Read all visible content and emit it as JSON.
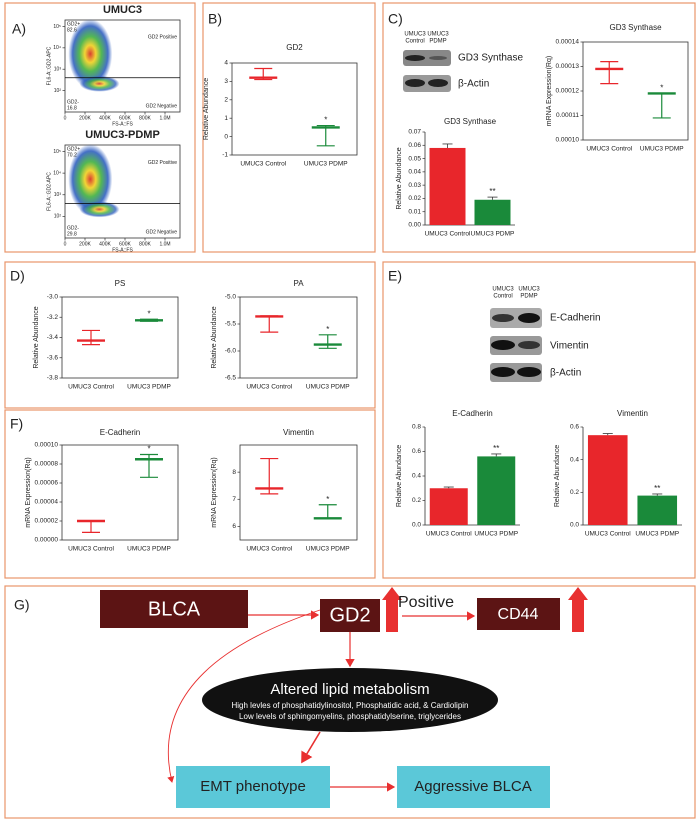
{
  "panel_labels": [
    "A)",
    "B)",
    "C)",
    "D)",
    "E)",
    "F)",
    "G)"
  ],
  "chart_data": [
    {
      "type": "density",
      "title": "UMUC3",
      "xlabel": "FS-A::FS",
      "ylabel": "FL6-A::GD2-APC",
      "xlim": [
        0,
        1150000
      ],
      "xticks": [
        0,
        {
          "value": 200000,
          "label": "200K"
        },
        {
          "value": 400000,
          "label": "400K"
        },
        {
          "value": 600000,
          "label": "600K"
        },
        {
          "value": 800000,
          "label": "800K"
        },
        {
          "value": 1000000,
          "label": "1.0M"
        }
      ],
      "log_y": true,
      "ylim": [
        10,
        200000
      ],
      "yticks": [
        {
          "value": 100,
          "label": "10²"
        },
        {
          "value": 1000,
          "label": "10³"
        },
        {
          "value": 10000,
          "label": "10⁴"
        },
        {
          "value": 100000,
          "label": "10⁵"
        }
      ],
      "gate": 400,
      "gate_labels": [
        "GD2+",
        "82.6",
        "GD2 Positive",
        "GD2-",
        "16.8",
        "GD2 Negative"
      ]
    },
    {
      "type": "density",
      "title": "UMUC3-PDMP",
      "xlabel": "FS-A::FS",
      "ylabel": "FL6-A::GD2-APC",
      "xlim": [
        0,
        1150000
      ],
      "xticks": [
        0,
        {
          "value": 200000,
          "label": "200K"
        },
        {
          "value": 400000,
          "label": "400K"
        },
        {
          "value": 600000,
          "label": "600K"
        },
        {
          "value": 800000,
          "label": "800K"
        },
        {
          "value": 1000000,
          "label": "1.0M"
        }
      ],
      "log_y": true,
      "ylim": [
        10,
        200000
      ],
      "yticks": [
        {
          "value": 100,
          "label": "10²"
        },
        {
          "value": 1000,
          "label": "10³"
        },
        {
          "value": 10000,
          "label": "10⁴"
        },
        {
          "value": 100000,
          "label": "10⁵"
        }
      ],
      "gate": 400,
      "gate_labels": [
        "GD2+",
        "70.2",
        "GD2 Positive",
        "GD2-",
        "29.8",
        "GD2 Negative"
      ]
    },
    {
      "type": "box",
      "title": "GD2",
      "ylabel": "Relative Abundance",
      "categories": [
        "UMUC3 Control",
        "UMUC3 PDMP"
      ],
      "colors": [
        "#e8262b",
        "#1a8a3a"
      ],
      "min": [
        3.1,
        -0.5
      ],
      "median": [
        3.2,
        0.5
      ],
      "max": [
        3.7,
        0.6
      ],
      "value_annotations": [
        null,
        "*"
      ],
      "ylim": [
        -1,
        4
      ],
      "yticks": [
        -1,
        0,
        1,
        2,
        3,
        4
      ]
    },
    {
      "type": "bar",
      "title": "GD3 Synthase",
      "ylabel": "Relative Abundance",
      "categories": [
        "UMUC3 Control",
        "UMUC3 PDMP"
      ],
      "colors": [
        "#e8262b",
        "#1a8a3a"
      ],
      "values": [
        0.058,
        0.019
      ],
      "errors": [
        0.003,
        0.002
      ],
      "value_annotations": [
        null,
        "**"
      ],
      "ylim": [
        0,
        0.07
      ],
      "yticks": [
        {
          "value": 0,
          "label": "0.00"
        },
        {
          "value": 0.01,
          "label": "0.01"
        },
        {
          "value": 0.02,
          "label": "0.02"
        },
        {
          "value": 0.03,
          "label": "0.03"
        },
        {
          "value": 0.04,
          "label": "0.04"
        },
        {
          "value": 0.05,
          "label": "0.05"
        },
        {
          "value": 0.06,
          "label": "0.06"
        },
        {
          "value": 0.07,
          "label": "0.07"
        }
      ]
    },
    {
      "type": "box",
      "title": "GD3 Synthase",
      "ylabel": "mRNA Expression(Rq)",
      "categories": [
        "UMUC3 Control",
        "UMUC3 PDMP"
      ],
      "colors": [
        "#e8262b",
        "#1a8a3a"
      ],
      "min": [
        0.000123,
        0.000109
      ],
      "median": [
        0.000129,
        0.000119
      ],
      "max": [
        0.000132,
        0.000119
      ],
      "value_annotations": [
        null,
        "*"
      ],
      "ylim": [
        0.0001,
        0.00014
      ],
      "yticks": [
        {
          "value": 0.0001,
          "label": "0.00010"
        },
        {
          "value": 0.00011,
          "label": "0.00011"
        },
        {
          "value": 0.00012,
          "label": "0.00012"
        },
        {
          "value": 0.00013,
          "label": "0.00013"
        },
        {
          "value": 0.00014,
          "label": "0.00014"
        }
      ]
    },
    {
      "type": "box",
      "title": "PS",
      "ylabel": "Relative Abundance",
      "categories": [
        "UMUC3 Control",
        "UMUC3 PDMP"
      ],
      "colors": [
        "#e8262b",
        "#1a8a3a"
      ],
      "min": [
        -3.47,
        -3.24
      ],
      "median": [
        -3.43,
        -3.23
      ],
      "max": [
        -3.33,
        -3.22
      ],
      "value_annotations": [
        null,
        "*"
      ],
      "ylim": [
        -3.8,
        -3.0
      ],
      "yticks": [
        -3.8,
        -3.6,
        -3.4,
        -3.2,
        {
          "value": -3,
          "label": "-3.0"
        }
      ]
    },
    {
      "type": "box",
      "title": "PA",
      "ylabel": "Relative Abundance",
      "categories": [
        "UMUC3 Control",
        "UMUC3 PDMP"
      ],
      "colors": [
        "#e8262b",
        "#1a8a3a"
      ],
      "min": [
        -5.65,
        -5.95
      ],
      "median": [
        -5.36,
        -5.88
      ],
      "max": [
        -5.35,
        -5.7
      ],
      "value_annotations": [
        null,
        "*"
      ],
      "ylim": [
        -6.5,
        -5.0
      ],
      "yticks": [
        -6.5,
        {
          "value": -6,
          "label": "-6.0"
        },
        -5.5,
        {
          "value": -5,
          "label": "-5.0"
        }
      ]
    },
    {
      "type": "bar",
      "title": "E-Cadherin",
      "ylabel": "Relative Abundance",
      "categories": [
        "UMUC3 Control",
        "UMUC3 PDMP"
      ],
      "colors": [
        "#e8262b",
        "#1a8a3a"
      ],
      "values": [
        0.3,
        0.56
      ],
      "errors": [
        0.01,
        0.02
      ],
      "value_annotations": [
        null,
        "**"
      ],
      "ylim": [
        0,
        0.8
      ],
      "yticks": [
        {
          "value": 0,
          "label": "0.0"
        },
        0.2,
        0.4,
        0.6,
        0.8
      ]
    },
    {
      "type": "bar",
      "title": "Vimentin",
      "ylabel": "Relative Abundance",
      "categories": [
        "UMUC3 Control",
        "UMUC3 PDMP"
      ],
      "colors": [
        "#e8262b",
        "#1a8a3a"
      ],
      "values": [
        0.55,
        0.18
      ],
      "errors": [
        0.01,
        0.01
      ],
      "value_annotations": [
        null,
        "**"
      ],
      "ylim": [
        0,
        0.6
      ],
      "yticks": [
        {
          "value": 0,
          "label": "0.0"
        },
        0.2,
        0.4,
        0.6
      ]
    },
    {
      "type": "box",
      "title": "E-Cadherin",
      "ylabel": "mRNA Expression(Rq)",
      "categories": [
        "UMUC3 Control",
        "UMUC3 PDMP"
      ],
      "colors": [
        "#e8262b",
        "#1a8a3a"
      ],
      "min": [
        8e-06,
        6.6e-05
      ],
      "median": [
        2e-05,
        8.5e-05
      ],
      "max": [
        2e-05,
        9e-05
      ],
      "value_annotations": [
        null,
        "*"
      ],
      "ylim": [
        0,
        0.0001
      ],
      "yticks": [
        {
          "value": 0,
          "label": "0.00000"
        },
        {
          "value": 2e-05,
          "label": "0.00002"
        },
        {
          "value": 4e-05,
          "label": "0.00004"
        },
        {
          "value": 6e-05,
          "label": "0.00006"
        },
        {
          "value": 8e-05,
          "label": "0.00008"
        },
        {
          "value": 0.0001,
          "label": "0.00010"
        }
      ]
    },
    {
      "type": "box",
      "title": "Vimentin",
      "ylabel": "mRNA Expression(Rq)",
      "categories": [
        "UMUC3 Control",
        "UMUC3 PDMP"
      ],
      "colors": [
        "#e8262b",
        "#1a8a3a"
      ],
      "min": [
        7.2,
        6.3
      ],
      "median": [
        7.4,
        6.3
      ],
      "max": [
        8.5,
        6.8
      ],
      "value_annotations": [
        null,
        "*"
      ],
      "ylim": [
        5.5,
        9
      ],
      "yticks": [
        6,
        7,
        8
      ]
    }
  ],
  "blots": [
    {
      "lanes": [
        [
          "UMUC3",
          "Control"
        ],
        [
          "UMUC3",
          "PDMP"
        ]
      ],
      "bands": [
        "GD3 Synthase",
        "β-Actin"
      ]
    },
    {
      "lanes": [
        [
          "UMUC3",
          "Control"
        ],
        [
          "UMUC3",
          "PDMP"
        ]
      ],
      "bands": [
        "E-Cadherin",
        "Vimentin",
        "β-Actin"
      ]
    }
  ],
  "diagram": {
    "blca": "BLCA",
    "gd2": "GD2",
    "positive": "Positive",
    "cd44": "CD44",
    "lipid_title": "Altered lipid metabolism",
    "lipid_lines": [
      "High levles of  phosphatidylinositol,  Phosphatidic acid, & Cardiolipin",
      "Low levels of  sphingomyelins, phosphatidylserine, triglycerides"
    ],
    "emt": "EMT phenotype",
    "aggressive": "Aggressive BLCA"
  }
}
